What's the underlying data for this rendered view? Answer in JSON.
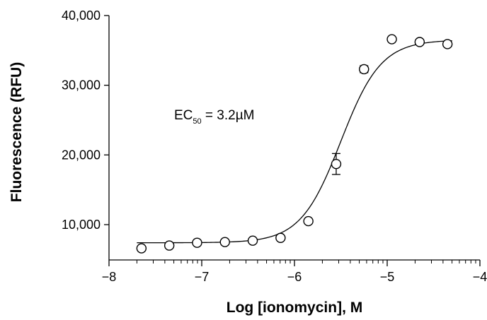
{
  "chart_data": {
    "type": "scatter",
    "xlabel": "Log [ionomycin], M",
    "ylabel": "Fluorescence (RFU)",
    "xlim": [
      -8,
      -4
    ],
    "ylim": [
      5000,
      40000
    ],
    "x_ticks": [
      -8,
      -7,
      -6,
      -5,
      -4
    ],
    "x_tick_labels": [
      "−8",
      "−7",
      "−6",
      "−5",
      "−4"
    ],
    "y_ticks": [
      10000,
      20000,
      30000,
      40000
    ],
    "y_tick_labels": [
      "10,000",
      "20,000",
      "30,000",
      "40,000"
    ],
    "x_scale": "linear",
    "minor_x_ticks": "log-decade",
    "grid": false,
    "legend": "none",
    "annotation": {
      "prefix": "EC",
      "subscript": "50",
      "suffix": " = 3.2µM"
    },
    "series": [
      {
        "style": "open-circle-markers",
        "points": [
          {
            "x": -7.65,
            "y": 6600
          },
          {
            "x": -7.35,
            "y": 7000
          },
          {
            "x": -7.05,
            "y": 7400
          },
          {
            "x": -6.75,
            "y": 7500
          },
          {
            "x": -6.45,
            "y": 7700
          },
          {
            "x": -6.15,
            "y": 8100
          },
          {
            "x": -5.85,
            "y": 10500
          },
          {
            "x": -5.55,
            "y": 18700,
            "error": 1500
          },
          {
            "x": -5.25,
            "y": 32300,
            "error": 500
          },
          {
            "x": -4.95,
            "y": 36600
          },
          {
            "x": -4.65,
            "y": 36200
          },
          {
            "x": -4.35,
            "y": 35900
          }
        ]
      }
    ],
    "fit_curve": {
      "type": "four-parameter-logistic",
      "bottom": 7400,
      "top": 36500,
      "logEC50": -5.5,
      "hill": 2.0
    }
  }
}
